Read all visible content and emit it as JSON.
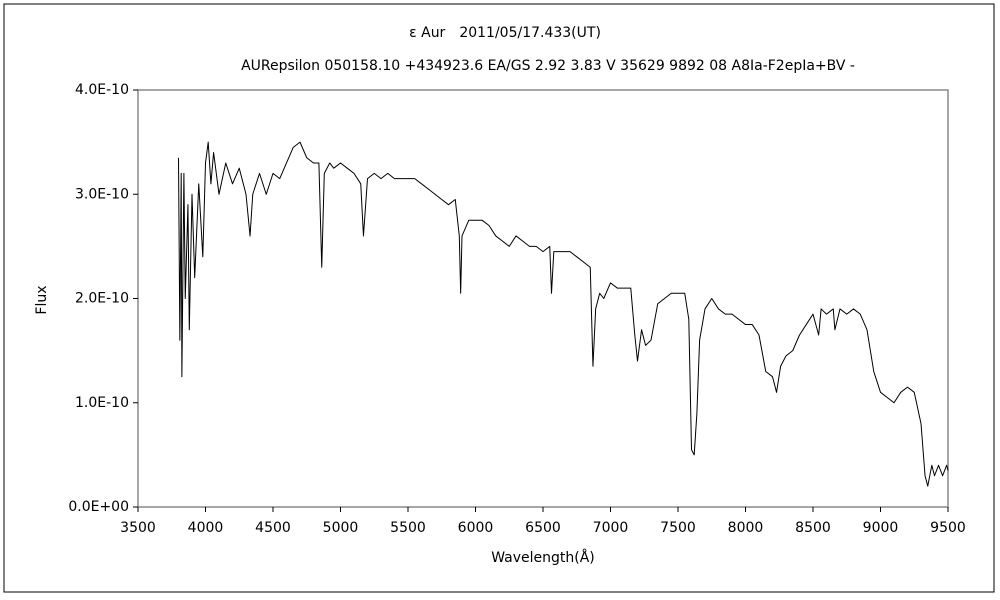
{
  "chart_data": {
    "type": "line",
    "title": "ε Aur　2011/05/17.433(UT)",
    "subtitle": "AURepsilon 050158.10 +434923.6 EA/GS 2.92 3.83 V 35629 9892 08 A8Ia-F2epIa+BV -",
    "xlabel": "Wavelength(Å)",
    "ylabel": "Flux",
    "xlim": [
      3500,
      9500
    ],
    "xticks": [
      3500,
      4000,
      4500,
      5000,
      5500,
      6000,
      6500,
      7000,
      7500,
      8000,
      8500,
      9000,
      9500
    ],
    "ylim": [
      0,
      4e-10
    ],
    "yticks": [
      {
        "value": 0,
        "label": "0.0E+00"
      },
      {
        "value": 1e-10,
        "label": "1.0E-10"
      },
      {
        "value": 2e-10,
        "label": "2.0E-10"
      },
      {
        "value": 3e-10,
        "label": "3.0E-10"
      },
      {
        "value": 4e-10,
        "label": "4.0E-10"
      }
    ],
    "grid": false,
    "series": [
      {
        "color": "#000000",
        "x": [
          3800,
          3810,
          3820,
          3825,
          3840,
          3850,
          3870,
          3880,
          3900,
          3920,
          3950,
          3980,
          4000,
          4020,
          4040,
          4060,
          4080,
          4100,
          4150,
          4200,
          4250,
          4300,
          4330,
          4350,
          4400,
          4450,
          4500,
          4550,
          4600,
          4650,
          4700,
          4750,
          4800,
          4840,
          4861,
          4880,
          4920,
          4950,
          5000,
          5050,
          5100,
          5150,
          5170,
          5200,
          5250,
          5300,
          5350,
          5400,
          5450,
          5500,
          5550,
          5600,
          5650,
          5700,
          5750,
          5800,
          5850,
          5880,
          5890,
          5900,
          5950,
          6000,
          6050,
          6100,
          6150,
          6200,
          6250,
          6300,
          6350,
          6400,
          6450,
          6500,
          6550,
          6563,
          6580,
          6650,
          6700,
          6750,
          6800,
          6850,
          6870,
          6890,
          6920,
          6950,
          7000,
          7050,
          7100,
          7150,
          7180,
          7200,
          7230,
          7260,
          7300,
          7350,
          7400,
          7450,
          7500,
          7550,
          7580,
          7600,
          7620,
          7640,
          7660,
          7700,
          7750,
          7800,
          7850,
          7900,
          7950,
          8000,
          8050,
          8100,
          8150,
          8200,
          8230,
          8260,
          8300,
          8350,
          8400,
          8450,
          8500,
          8542,
          8560,
          8600,
          8650,
          8662,
          8700,
          8750,
          8800,
          8850,
          8900,
          8950,
          9000,
          9050,
          9100,
          9150,
          9200,
          9250,
          9300,
          9330,
          9350,
          9380,
          9400,
          9430,
          9460,
          9490,
          9500
        ],
        "values": [
          3.35e-10,
          1.6e-10,
          3.2e-10,
          1.25e-10,
          3.2e-10,
          2e-10,
          2.9e-10,
          1.7e-10,
          3e-10,
          2.2e-10,
          3.1e-10,
          2.4e-10,
          3.3e-10,
          3.5e-10,
          3.1e-10,
          3.4e-10,
          3.2e-10,
          3e-10,
          3.3e-10,
          3.1e-10,
          3.25e-10,
          3e-10,
          2.6e-10,
          3e-10,
          3.2e-10,
          3e-10,
          3.2e-10,
          3.15e-10,
          3.3e-10,
          3.45e-10,
          3.5e-10,
          3.35e-10,
          3.3e-10,
          3.3e-10,
          2.3e-10,
          3.2e-10,
          3.3e-10,
          3.25e-10,
          3.3e-10,
          3.25e-10,
          3.2e-10,
          3.1e-10,
          2.6e-10,
          3.15e-10,
          3.2e-10,
          3.15e-10,
          3.2e-10,
          3.15e-10,
          3.15e-10,
          3.15e-10,
          3.15e-10,
          3.1e-10,
          3.05e-10,
          3e-10,
          2.95e-10,
          2.9e-10,
          2.95e-10,
          2.6e-10,
          2.05e-10,
          2.6e-10,
          2.75e-10,
          2.75e-10,
          2.75e-10,
          2.7e-10,
          2.6e-10,
          2.55e-10,
          2.5e-10,
          2.6e-10,
          2.55e-10,
          2.5e-10,
          2.5e-10,
          2.45e-10,
          2.5e-10,
          2.05e-10,
          2.45e-10,
          2.45e-10,
          2.45e-10,
          2.4e-10,
          2.35e-10,
          2.3e-10,
          1.35e-10,
          1.9e-10,
          2.05e-10,
          2e-10,
          2.15e-10,
          2.1e-10,
          2.1e-10,
          2.1e-10,
          1.65e-10,
          1.4e-10,
          1.7e-10,
          1.55e-10,
          1.6e-10,
          1.95e-10,
          2e-10,
          2.05e-10,
          2.05e-10,
          2.05e-10,
          1.8e-10,
          5.5e-11,
          5e-11,
          9e-11,
          1.6e-10,
          1.9e-10,
          2e-10,
          1.9e-10,
          1.85e-10,
          1.85e-10,
          1.8e-10,
          1.75e-10,
          1.75e-10,
          1.65e-10,
          1.3e-10,
          1.25e-10,
          1.1e-10,
          1.35e-10,
          1.45e-10,
          1.5e-10,
          1.65e-10,
          1.75e-10,
          1.85e-10,
          1.65e-10,
          1.9e-10,
          1.85e-10,
          1.9e-10,
          1.7e-10,
          1.9e-10,
          1.85e-10,
          1.9e-10,
          1.85e-10,
          1.7e-10,
          1.3e-10,
          1.1e-10,
          1.05e-10,
          1e-10,
          1.1e-10,
          1.15e-10,
          1.1e-10,
          8e-11,
          3e-11,
          2e-11,
          4e-11,
          3e-11,
          4e-11,
          3e-11,
          4e-11,
          3.5e-11
        ]
      }
    ]
  }
}
